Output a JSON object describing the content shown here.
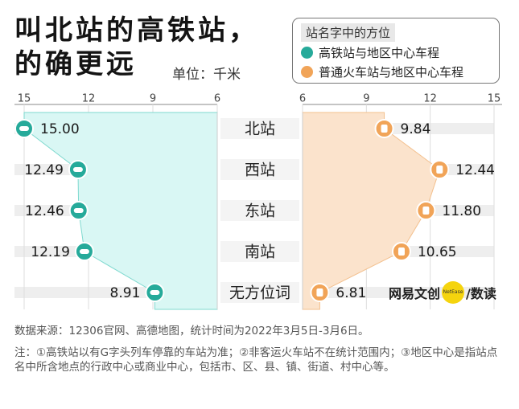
{
  "title_line1": "叫北站的高铁站，",
  "title_line2": "的确更远",
  "unit": "单位：千米",
  "legend": {
    "heading": "站名字中的方位",
    "hsr_label": "高铁站与地区中心车程",
    "conv_label": "普通火车站与地区中心车程"
  },
  "colors": {
    "hsr_fill": "#d9f7f4",
    "hsr_icon": "#26aa9a",
    "conv_fill": "#fbe3cc",
    "conv_icon": "#f1a458",
    "row_band": "#eeeeee",
    "axis": "#888888"
  },
  "chart_data": {
    "type": "bar",
    "categories": [
      "北站",
      "西站",
      "东站",
      "南站",
      "无方位词"
    ],
    "series": [
      {
        "name": "高铁站与地区中心车程",
        "values": [
          15.0,
          12.49,
          12.46,
          12.19,
          8.91
        ],
        "labels": [
          "15.00",
          "12.49",
          "12.46",
          "12.19",
          "8.91"
        ]
      },
      {
        "name": "普通火车站与地区中心车程",
        "values": [
          9.84,
          12.44,
          11.8,
          10.65,
          6.81
        ],
        "labels": [
          "9.84",
          "12.44",
          "11.80",
          "10.65",
          "6.81"
        ]
      }
    ],
    "left_ticks": [
      "15",
      "12",
      "9",
      "6"
    ],
    "right_ticks": [
      "6",
      "9",
      "12",
      "15"
    ],
    "xlim": [
      6,
      15
    ],
    "unit": "千米"
  },
  "footer": {
    "source": "数据来源：12306官网、高德地图，统计时间为2022年3月5日-3月6日。",
    "note": "注：①高铁站以有G字头列车停靠的车站为准；②非客运火车站不在统计范围内；③地区中心是指站点名中所含地点的行政中心或商业中心，包括市、区、县、镇、街道、村中心等。"
  },
  "logo": {
    "text": "网易文创",
    "badge": "NetEase",
    "tail": "/数读"
  }
}
